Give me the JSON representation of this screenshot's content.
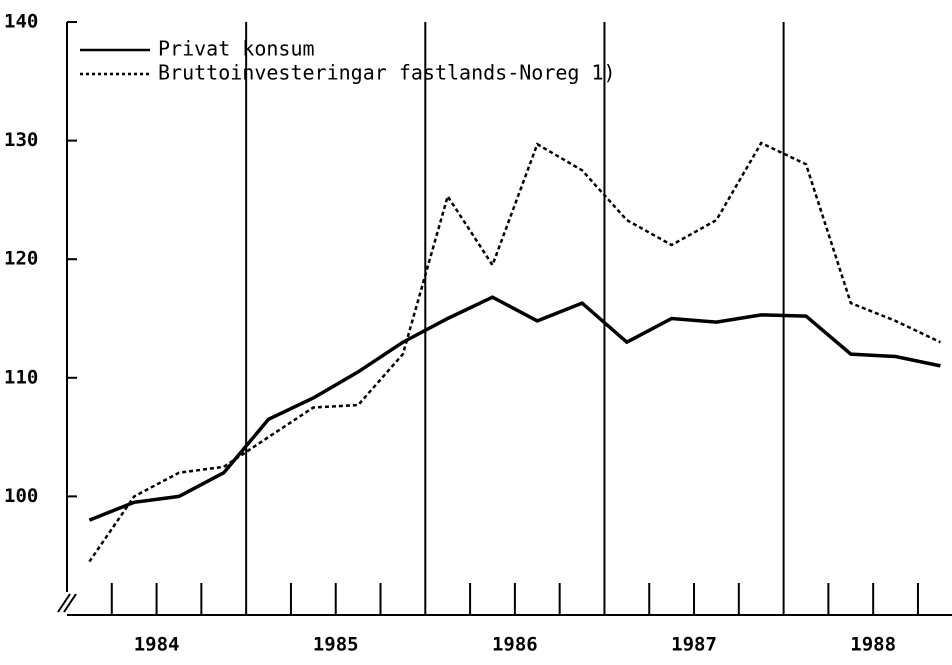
{
  "chart_data": {
    "type": "line",
    "x": [
      1984.125,
      1984.375,
      1984.625,
      1984.875,
      1985.125,
      1985.375,
      1985.625,
      1985.875,
      1986.125,
      1986.375,
      1986.625,
      1986.875,
      1987.125,
      1987.375,
      1987.625,
      1987.875,
      1988.125,
      1988.375,
      1988.625,
      1988.875
    ],
    "series": [
      {
        "name": "Privat konsum",
        "color": "#000000",
        "line_style": "solid",
        "values": [
          98,
          99.5,
          100,
          102,
          106.5,
          108.3,
          110.5,
          113,
          115,
          116.8,
          114.8,
          116.3,
          113,
          115,
          114.7,
          115.3,
          115.2,
          112,
          111.8,
          111
        ]
      },
      {
        "name": "Bruttoinvesteringar fastlands-Noreg 1)",
        "color": "#000000",
        "line_style": "dotted",
        "values": [
          94.5,
          100,
          102,
          102.5,
          105,
          107.5,
          107.7,
          112,
          125.3,
          119.5,
          129.7,
          127.5,
          123.3,
          121.2,
          123.3,
          129.8,
          128,
          116.3,
          114.8,
          113
        ]
      }
    ],
    "xlim": [
      1984,
      1988.94
    ],
    "xticks": [
      {
        "value": 1984.5,
        "label": "1984"
      },
      {
        "value": 1985.5,
        "label": "1985"
      },
      {
        "value": 1986.5,
        "label": "1986"
      },
      {
        "value": 1987.5,
        "label": "1987"
      },
      {
        "value": 1988.5,
        "label": "1988"
      }
    ],
    "xminor_ticks": [
      1984.25,
      1984.5,
      1984.75,
      1985.25,
      1985.5,
      1985.75,
      1986.25,
      1986.5,
      1986.75,
      1987.25,
      1987.5,
      1987.75,
      1988.25,
      1988.5,
      1988.75
    ],
    "year_lines": [
      1985,
      1986,
      1987,
      1988
    ],
    "ylim": [
      90,
      140
    ],
    "yticks": [
      100,
      110,
      120,
      130,
      140
    ],
    "legend": "upper left"
  }
}
